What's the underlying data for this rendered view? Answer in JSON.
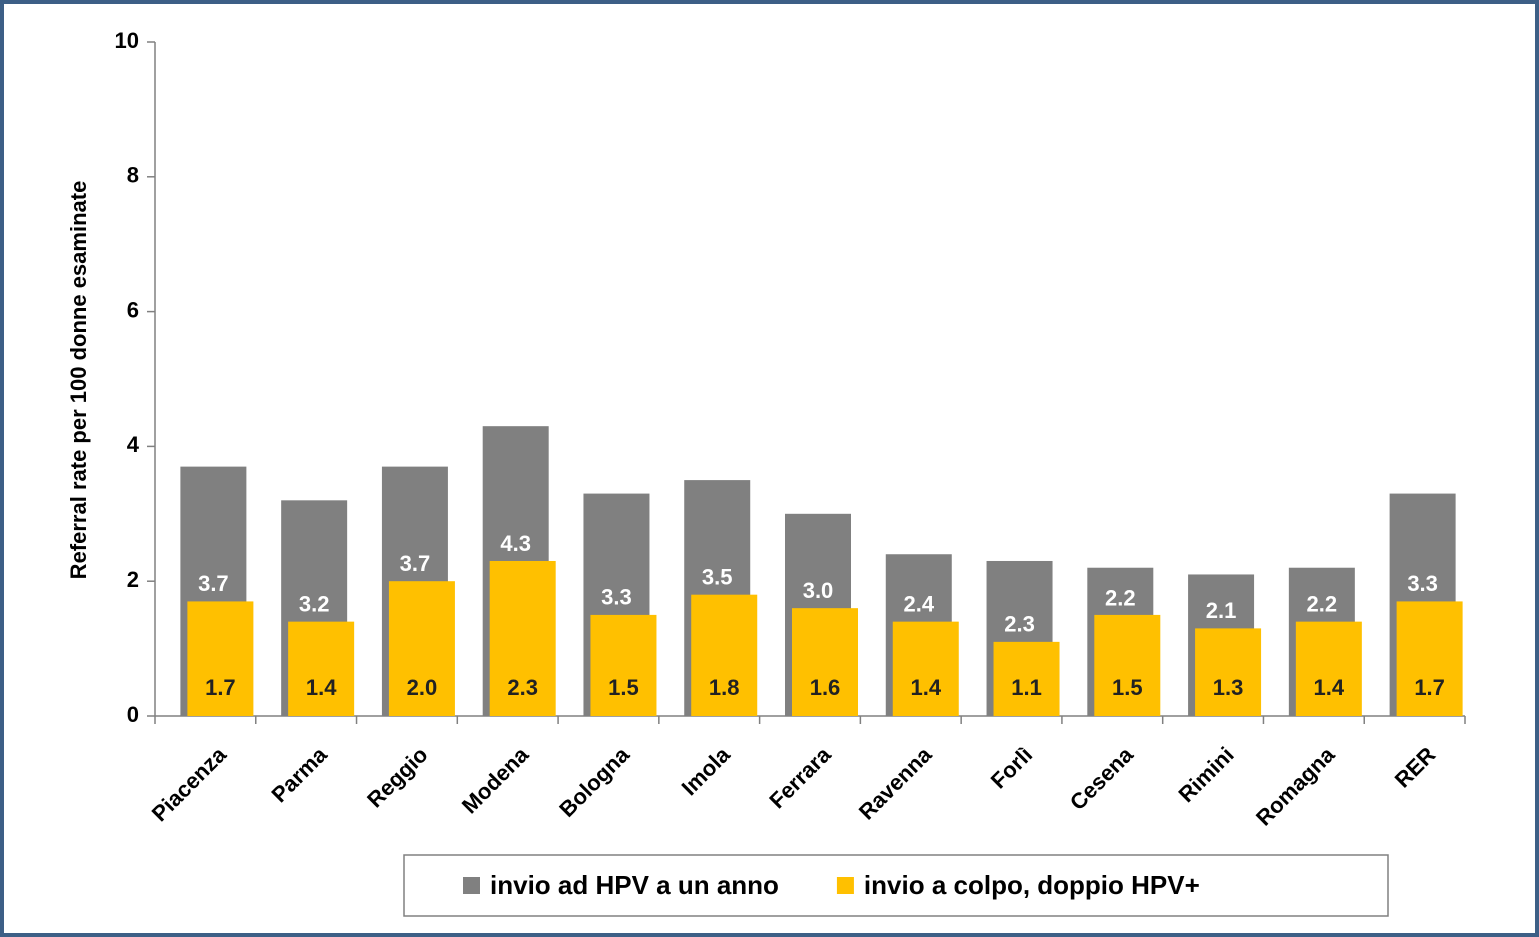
{
  "chart_data": {
    "type": "overlapped_bar",
    "y_label": "Referral rate per 100 donne esaminate",
    "categories": [
      "Piacenza",
      "Parma",
      "Reggio",
      "Modena",
      "Bologna",
      "Imola",
      "Ferrara",
      "Ravenna",
      "Forlì",
      "Cesena",
      "Rimini",
      "Romagna",
      "RER"
    ],
    "series": [
      {
        "name": "invio ad HPV a un anno",
        "color": "#808080",
        "values": [
          3.7,
          3.2,
          3.7,
          4.3,
          3.3,
          3.5,
          3.0,
          2.4,
          2.3,
          2.2,
          2.1,
          2.2,
          3.3
        ],
        "value_labels": [
          "3.7",
          "3.2",
          "3.7",
          "4.3",
          "3.3",
          "3.5",
          "3.0",
          "2.4",
          "2.3",
          "2.2",
          "2.1",
          "2.2",
          "3.3"
        ]
      },
      {
        "name": "invio a colpo, doppio HPV+",
        "color": "#ffc000",
        "values": [
          1.7,
          1.4,
          2.0,
          2.3,
          1.5,
          1.8,
          1.6,
          1.4,
          1.1,
          1.5,
          1.3,
          1.4,
          1.7
        ],
        "value_labels": [
          "1.7",
          "1.4",
          "2.0",
          "2.3",
          "1.5",
          "1.8",
          "1.6",
          "1.4",
          "1.1",
          "1.5",
          "1.3",
          "1.4",
          "1.7"
        ]
      }
    ],
    "ylim": [
      0,
      10
    ],
    "yticks": [
      0,
      2,
      4,
      6,
      8,
      10
    ],
    "legend": "bottom"
  }
}
